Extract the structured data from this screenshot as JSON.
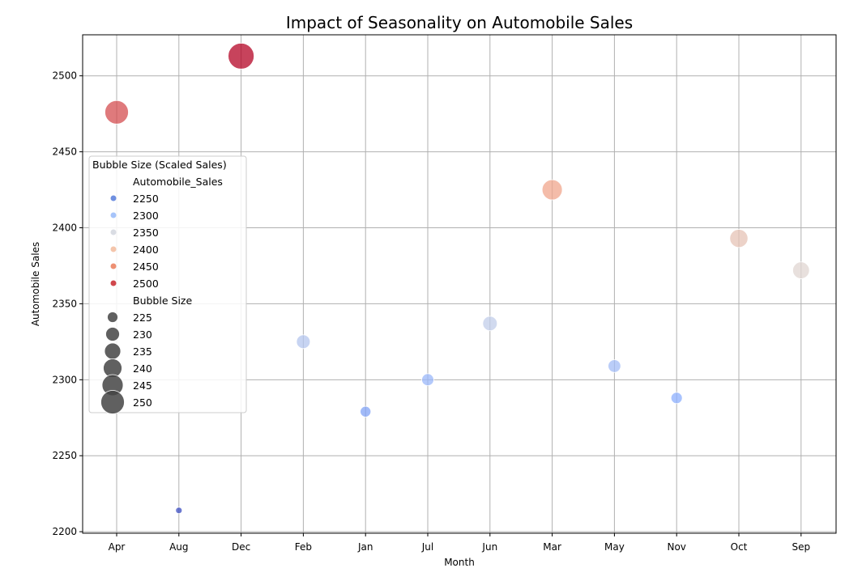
{
  "chart_data": {
    "type": "scatter",
    "title": "Impact of Seasonality on Automobile Sales",
    "xlabel": "Month",
    "ylabel": "Automobile Sales",
    "categories": [
      "Apr",
      "Aug",
      "Dec",
      "Feb",
      "Jan",
      "Jul",
      "Jun",
      "Mar",
      "May",
      "Nov",
      "Oct",
      "Sep"
    ],
    "values": [
      2476,
      2214,
      2513,
      2325,
      2279,
      2300,
      2337,
      2425,
      2309,
      2288,
      2393,
      2372
    ],
    "bubble_size": [
      247.6,
      221.4,
      251.3,
      232.5,
      227.9,
      230.0,
      233.7,
      242.5,
      230.9,
      228.8,
      239.3,
      237.2
    ],
    "ylim": [
      2199,
      2527
    ],
    "yticks": [
      2200,
      2250,
      2300,
      2350,
      2400,
      2450,
      2500
    ],
    "grid": true,
    "colormap": "coolwarm",
    "legend": {
      "title": "Bubble Size (Scaled Sales)",
      "placement": "center-left",
      "hue_title": "Automobile_Sales",
      "hue_entries": [
        {
          "label": "2250",
          "color": "#6f8fe0"
        },
        {
          "label": "2300",
          "color": "#a6c4fa"
        },
        {
          "label": "2350",
          "color": "#d9dce3"
        },
        {
          "label": "2400",
          "color": "#f4c5ab"
        },
        {
          "label": "2450",
          "color": "#ed8f72"
        },
        {
          "label": "2500",
          "color": "#d0474c"
        }
      ],
      "size_title": "Bubble Size",
      "size_entries": [
        "225",
        "230",
        "235",
        "240",
        "245",
        "250"
      ]
    }
  }
}
